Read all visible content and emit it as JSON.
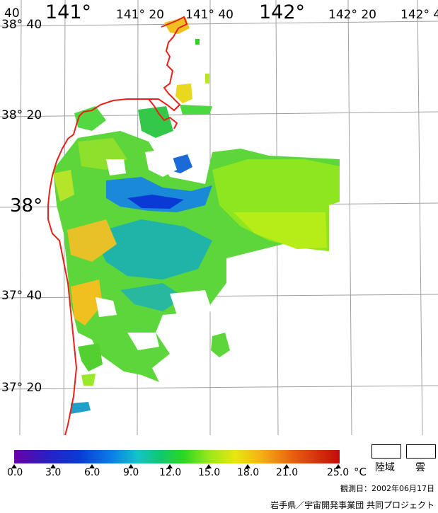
{
  "map": {
    "lon_labels": [
      {
        "text": "40",
        "cls": "minor"
      },
      {
        "text": "141°",
        "cls": "major"
      },
      {
        "text": "141° 20",
        "cls": "minor"
      },
      {
        "text": "141° 40",
        "cls": "minor"
      },
      {
        "text": "142°",
        "cls": "major"
      },
      {
        "text": "142° 20",
        "cls": "minor"
      },
      {
        "text": "142° 4",
        "cls": "minor"
      }
    ],
    "lat_labels": [
      {
        "text": "38° 40",
        "cls": "minor"
      },
      {
        "text": "38° 20",
        "cls": "minor"
      },
      {
        "text": "38°",
        "cls": "major"
      },
      {
        "text": "37° 40",
        "cls": "minor"
      },
      {
        "text": "37° 20",
        "cls": "minor"
      }
    ],
    "coastline_color": "#e8201a",
    "grid_color": "#a0a0a0"
  },
  "colorbar": {
    "ticks": [
      "0.0",
      "3.0",
      "6.0",
      "9.0",
      "12.0",
      "15.0",
      "18.0",
      "21.0",
      "25.0"
    ],
    "unit": "°C",
    "range": [
      0,
      25
    ],
    "colors": [
      "#6a00a8",
      "#0a3ad6",
      "#12c4c8",
      "#28d820",
      "#e8e612",
      "#e85c10",
      "#c40a0a"
    ]
  },
  "legend": {
    "land_label": "陸域",
    "cloud_label": "雲"
  },
  "footer": {
    "observation_date": "観測日：2002年06月17日",
    "credit": "岩手県／宇宙開発事業団  共同プロジェクト"
  }
}
